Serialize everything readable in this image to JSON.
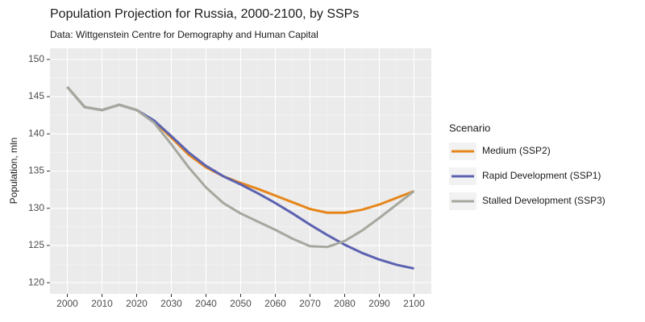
{
  "chart_data": {
    "type": "line",
    "title": "Population Projection for Russia, 2000-2100, by SSPs",
    "subtitle": "Data: Wittgenstein Centre for Demography and Human Capital",
    "y_label": "Population, mln",
    "legend_title": "Scenario",
    "legend_position": "right",
    "grid": true,
    "x": [
      2000,
      2005,
      2010,
      2015,
      2020,
      2025,
      2030,
      2035,
      2040,
      2045,
      2050,
      2055,
      2060,
      2065,
      2070,
      2075,
      2080,
      2085,
      2090,
      2095,
      2100
    ],
    "series": [
      {
        "name": "Medium (SSP2)",
        "color": "#e6861a",
        "values": [
          146.3,
          143.6,
          143.2,
          143.9,
          143.2,
          141.7,
          139.5,
          137.2,
          135.5,
          134.3,
          133.4,
          132.6,
          131.7,
          130.8,
          129.9,
          129.4,
          129.4,
          129.8,
          130.5,
          131.4,
          132.3
        ]
      },
      {
        "name": "Rapid Development (SSP1)",
        "color": "#5b62b0",
        "values": [
          146.3,
          143.6,
          143.2,
          143.9,
          143.2,
          141.8,
          139.7,
          137.5,
          135.7,
          134.3,
          133.2,
          132.0,
          130.7,
          129.3,
          127.8,
          126.4,
          125.1,
          124.0,
          123.1,
          122.4,
          121.9
        ]
      },
      {
        "name": "Stalled Development (SSP3)",
        "color": "#a5a89e",
        "values": [
          146.3,
          143.6,
          143.2,
          143.9,
          143.2,
          141.5,
          138.6,
          135.5,
          132.8,
          130.7,
          129.3,
          128.2,
          127.1,
          125.9,
          124.9,
          124.8,
          125.6,
          127.0,
          128.7,
          130.5,
          132.3
        ]
      }
    ],
    "xlim": [
      1995,
      2105
    ],
    "xticks": [
      2000,
      2010,
      2020,
      2030,
      2040,
      2050,
      2060,
      2070,
      2080,
      2090,
      2100
    ],
    "ylim": [
      118.5,
      151.5
    ],
    "yticks": [
      120,
      125,
      130,
      135,
      140,
      145,
      150
    ]
  }
}
